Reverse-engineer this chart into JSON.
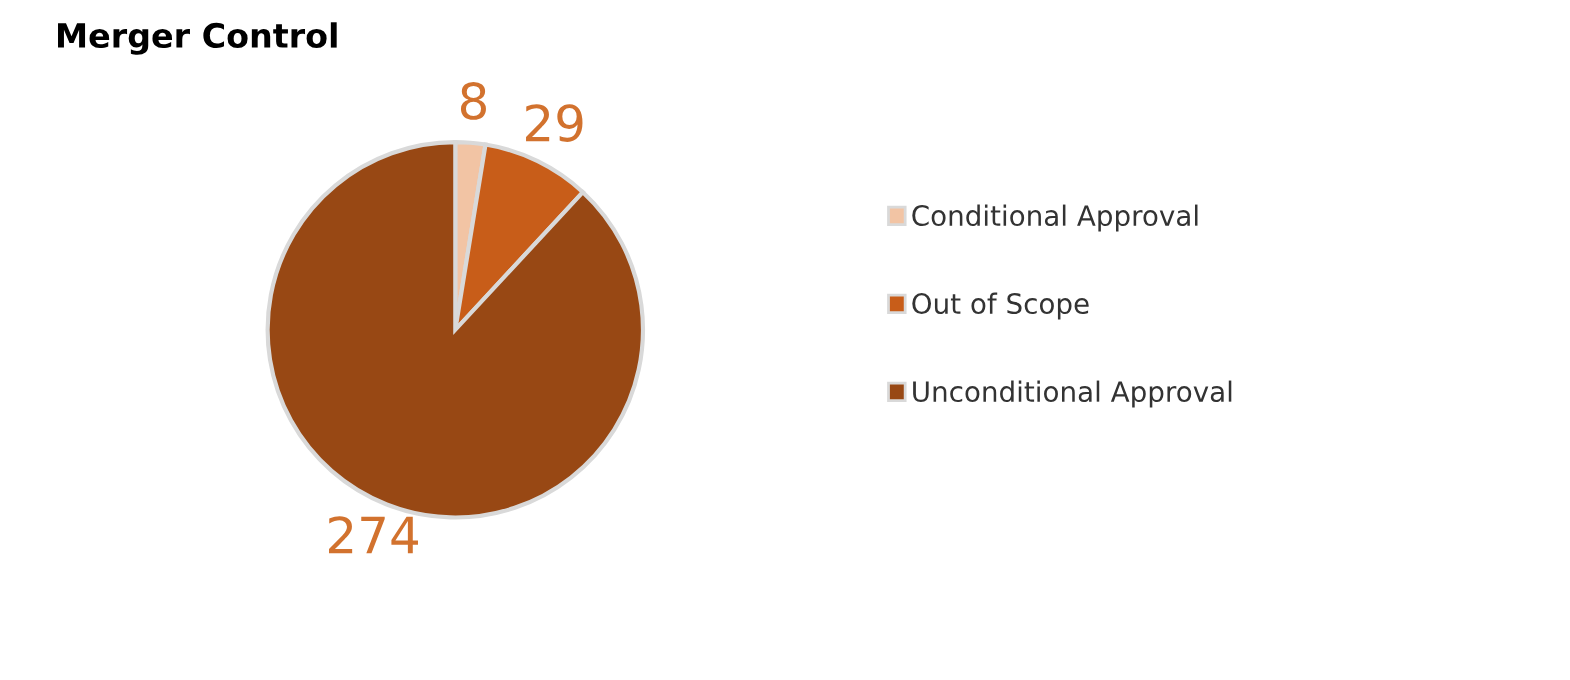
{
  "chart_data": {
    "type": "pie",
    "title": "Merger Control",
    "categories": [
      "Conditional Approval",
      "Out of Scope",
      "Unconditional Approval"
    ],
    "values": [
      8,
      29,
      274
    ],
    "colors": [
      "#f2c4a4",
      "#c85d19",
      "#984814"
    ],
    "data_labels": true,
    "legend": "right"
  }
}
